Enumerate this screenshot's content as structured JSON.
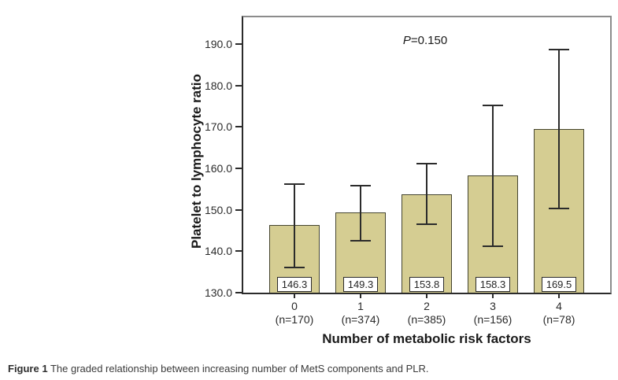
{
  "figure": {
    "y_axis_title": "Platelet to lymphocyte ratio",
    "x_axis_title": "Number of metabolic risk factors",
    "p_value": {
      "italic": "P",
      "rest": "=0.150"
    },
    "caption_bold": "Figure 1",
    "caption_text": " The graded relationship between increasing number of MetS components and PLR."
  },
  "chart_data": {
    "type": "bar",
    "title": "",
    "xlabel": "Number of metabolic risk factors",
    "ylabel": "Platelet to lymphocyte ratio",
    "annotation": "P=0.150",
    "categories": [
      "0",
      "1",
      "2",
      "3",
      "4"
    ],
    "category_sublabels": [
      "(n=170)",
      "(n=374)",
      "(n=385)",
      "(n=156)",
      "(n=78)"
    ],
    "values": [
      146.3,
      149.3,
      153.8,
      158.3,
      169.5
    ],
    "value_labels": [
      "146.3",
      "149.3",
      "153.8",
      "158.3",
      "169.5"
    ],
    "error_low": [
      136.1,
      142.5,
      146.5,
      141.3,
      150.4
    ],
    "error_high": [
      156.2,
      155.9,
      161.2,
      175.3,
      188.7
    ],
    "yticks": [
      130,
      140,
      150,
      160,
      170,
      180,
      190
    ],
    "ytick_labels": [
      "130.0",
      "140.0",
      "150.0",
      "160.0",
      "170.0",
      "180.0",
      "190.0"
    ],
    "ylim": [
      130,
      196.5
    ],
    "grid": false,
    "legend": null,
    "colors": {
      "bar_fill": "#d5cd92",
      "bar_border": "#45452f",
      "error_line": "#2b2b2b",
      "axis_line": "#2b2b2b",
      "frame_line": "#8c8c8c"
    }
  }
}
